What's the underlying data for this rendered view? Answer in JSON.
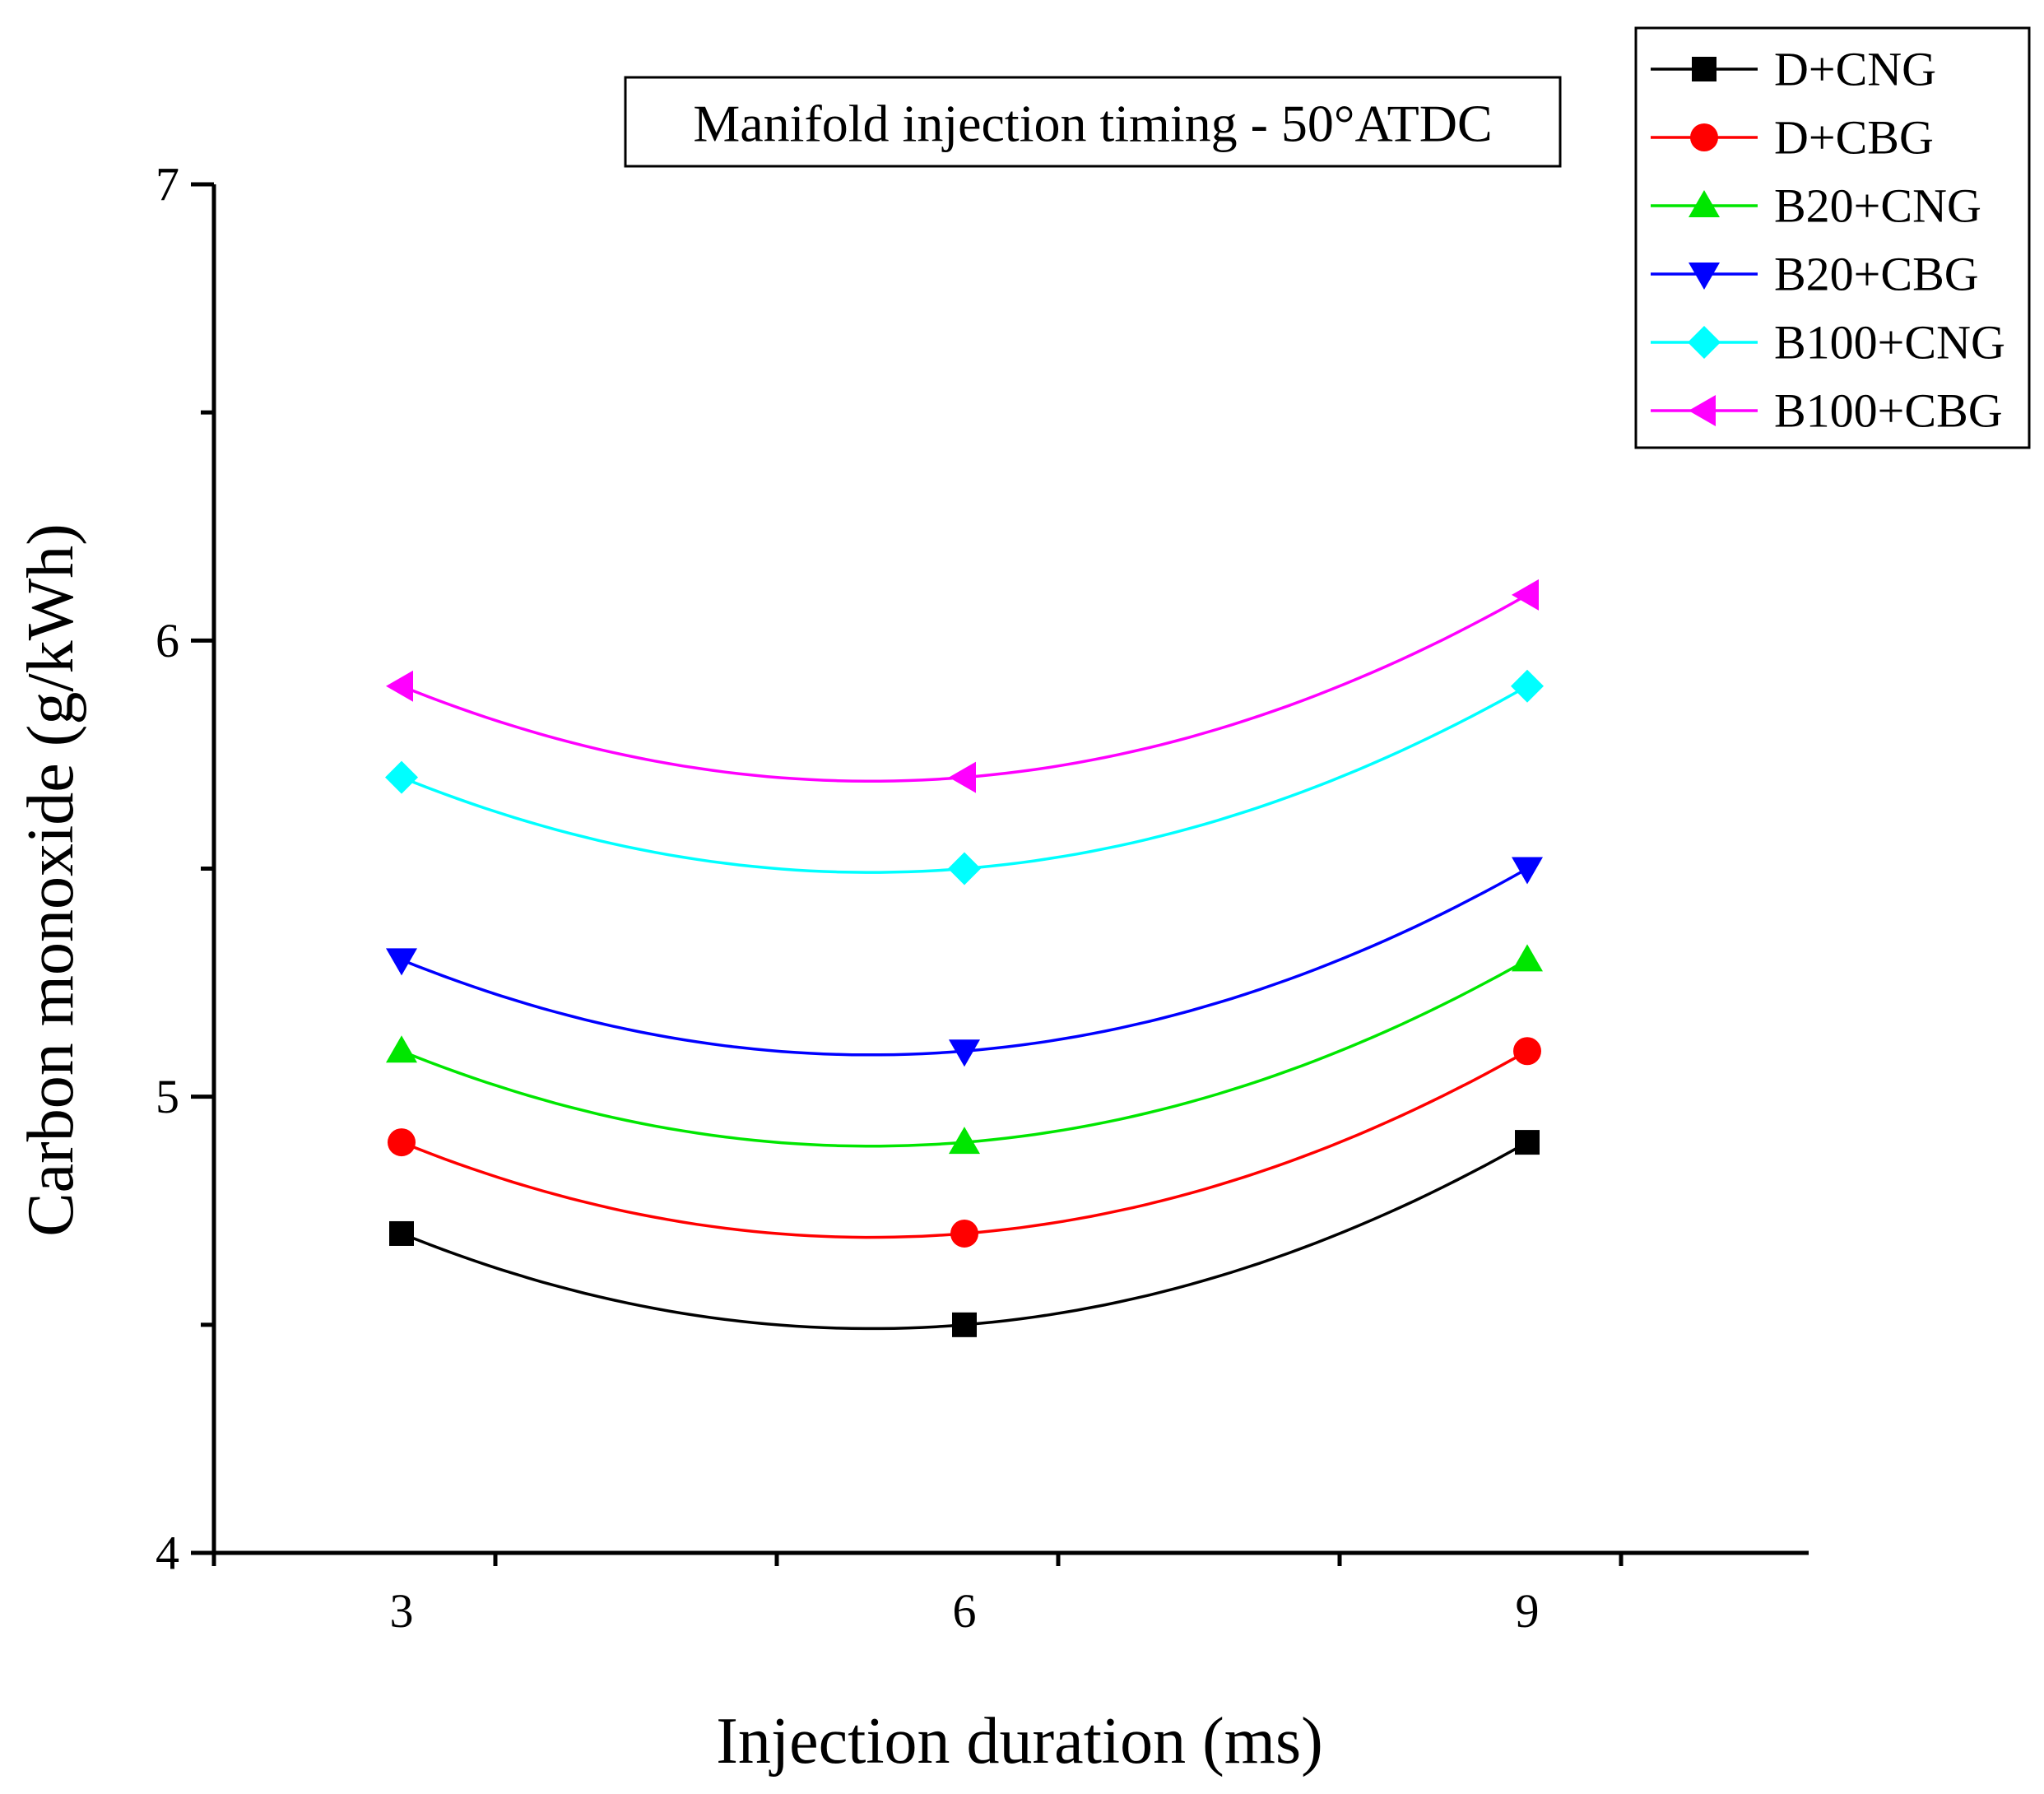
{
  "chart_data": {
    "type": "line",
    "title": "",
    "annotation": "Manifold injection timing - 50°ATDC",
    "xlabel": "Injection duration (ms)",
    "ylabel": "Carbon monoxide (g/kWh)",
    "xlim": [
      2.0,
      10.5
    ],
    "ylim": [
      4,
      7
    ],
    "xticks": [
      3,
      6,
      9
    ],
    "yticks": [
      4,
      5,
      6,
      7
    ],
    "x": [
      3,
      6,
      9
    ],
    "legend_position": "top-right",
    "grid": false,
    "series": [
      {
        "name": "D+CNG",
        "values": [
          4.7,
          4.5,
          4.9
        ],
        "color": "#000000",
        "marker": "square"
      },
      {
        "name": "D+CBG",
        "values": [
          4.9,
          4.7,
          5.1
        ],
        "color": "#ff0000",
        "marker": "circle"
      },
      {
        "name": "B20+CNG",
        "values": [
          5.1,
          4.9,
          5.3
        ],
        "color": "#00e600",
        "marker": "triangle-up"
      },
      {
        "name": "B20+CBG",
        "values": [
          5.3,
          5.1,
          5.5
        ],
        "color": "#0000ff",
        "marker": "triangle-down"
      },
      {
        "name": "B100+CNG",
        "values": [
          5.7,
          5.5,
          5.9
        ],
        "color": "#00ffff",
        "marker": "diamond"
      },
      {
        "name": "B100+CBG",
        "values": [
          5.9,
          5.7,
          6.1
        ],
        "color": "#ff00ff",
        "marker": "triangle-left"
      }
    ]
  }
}
